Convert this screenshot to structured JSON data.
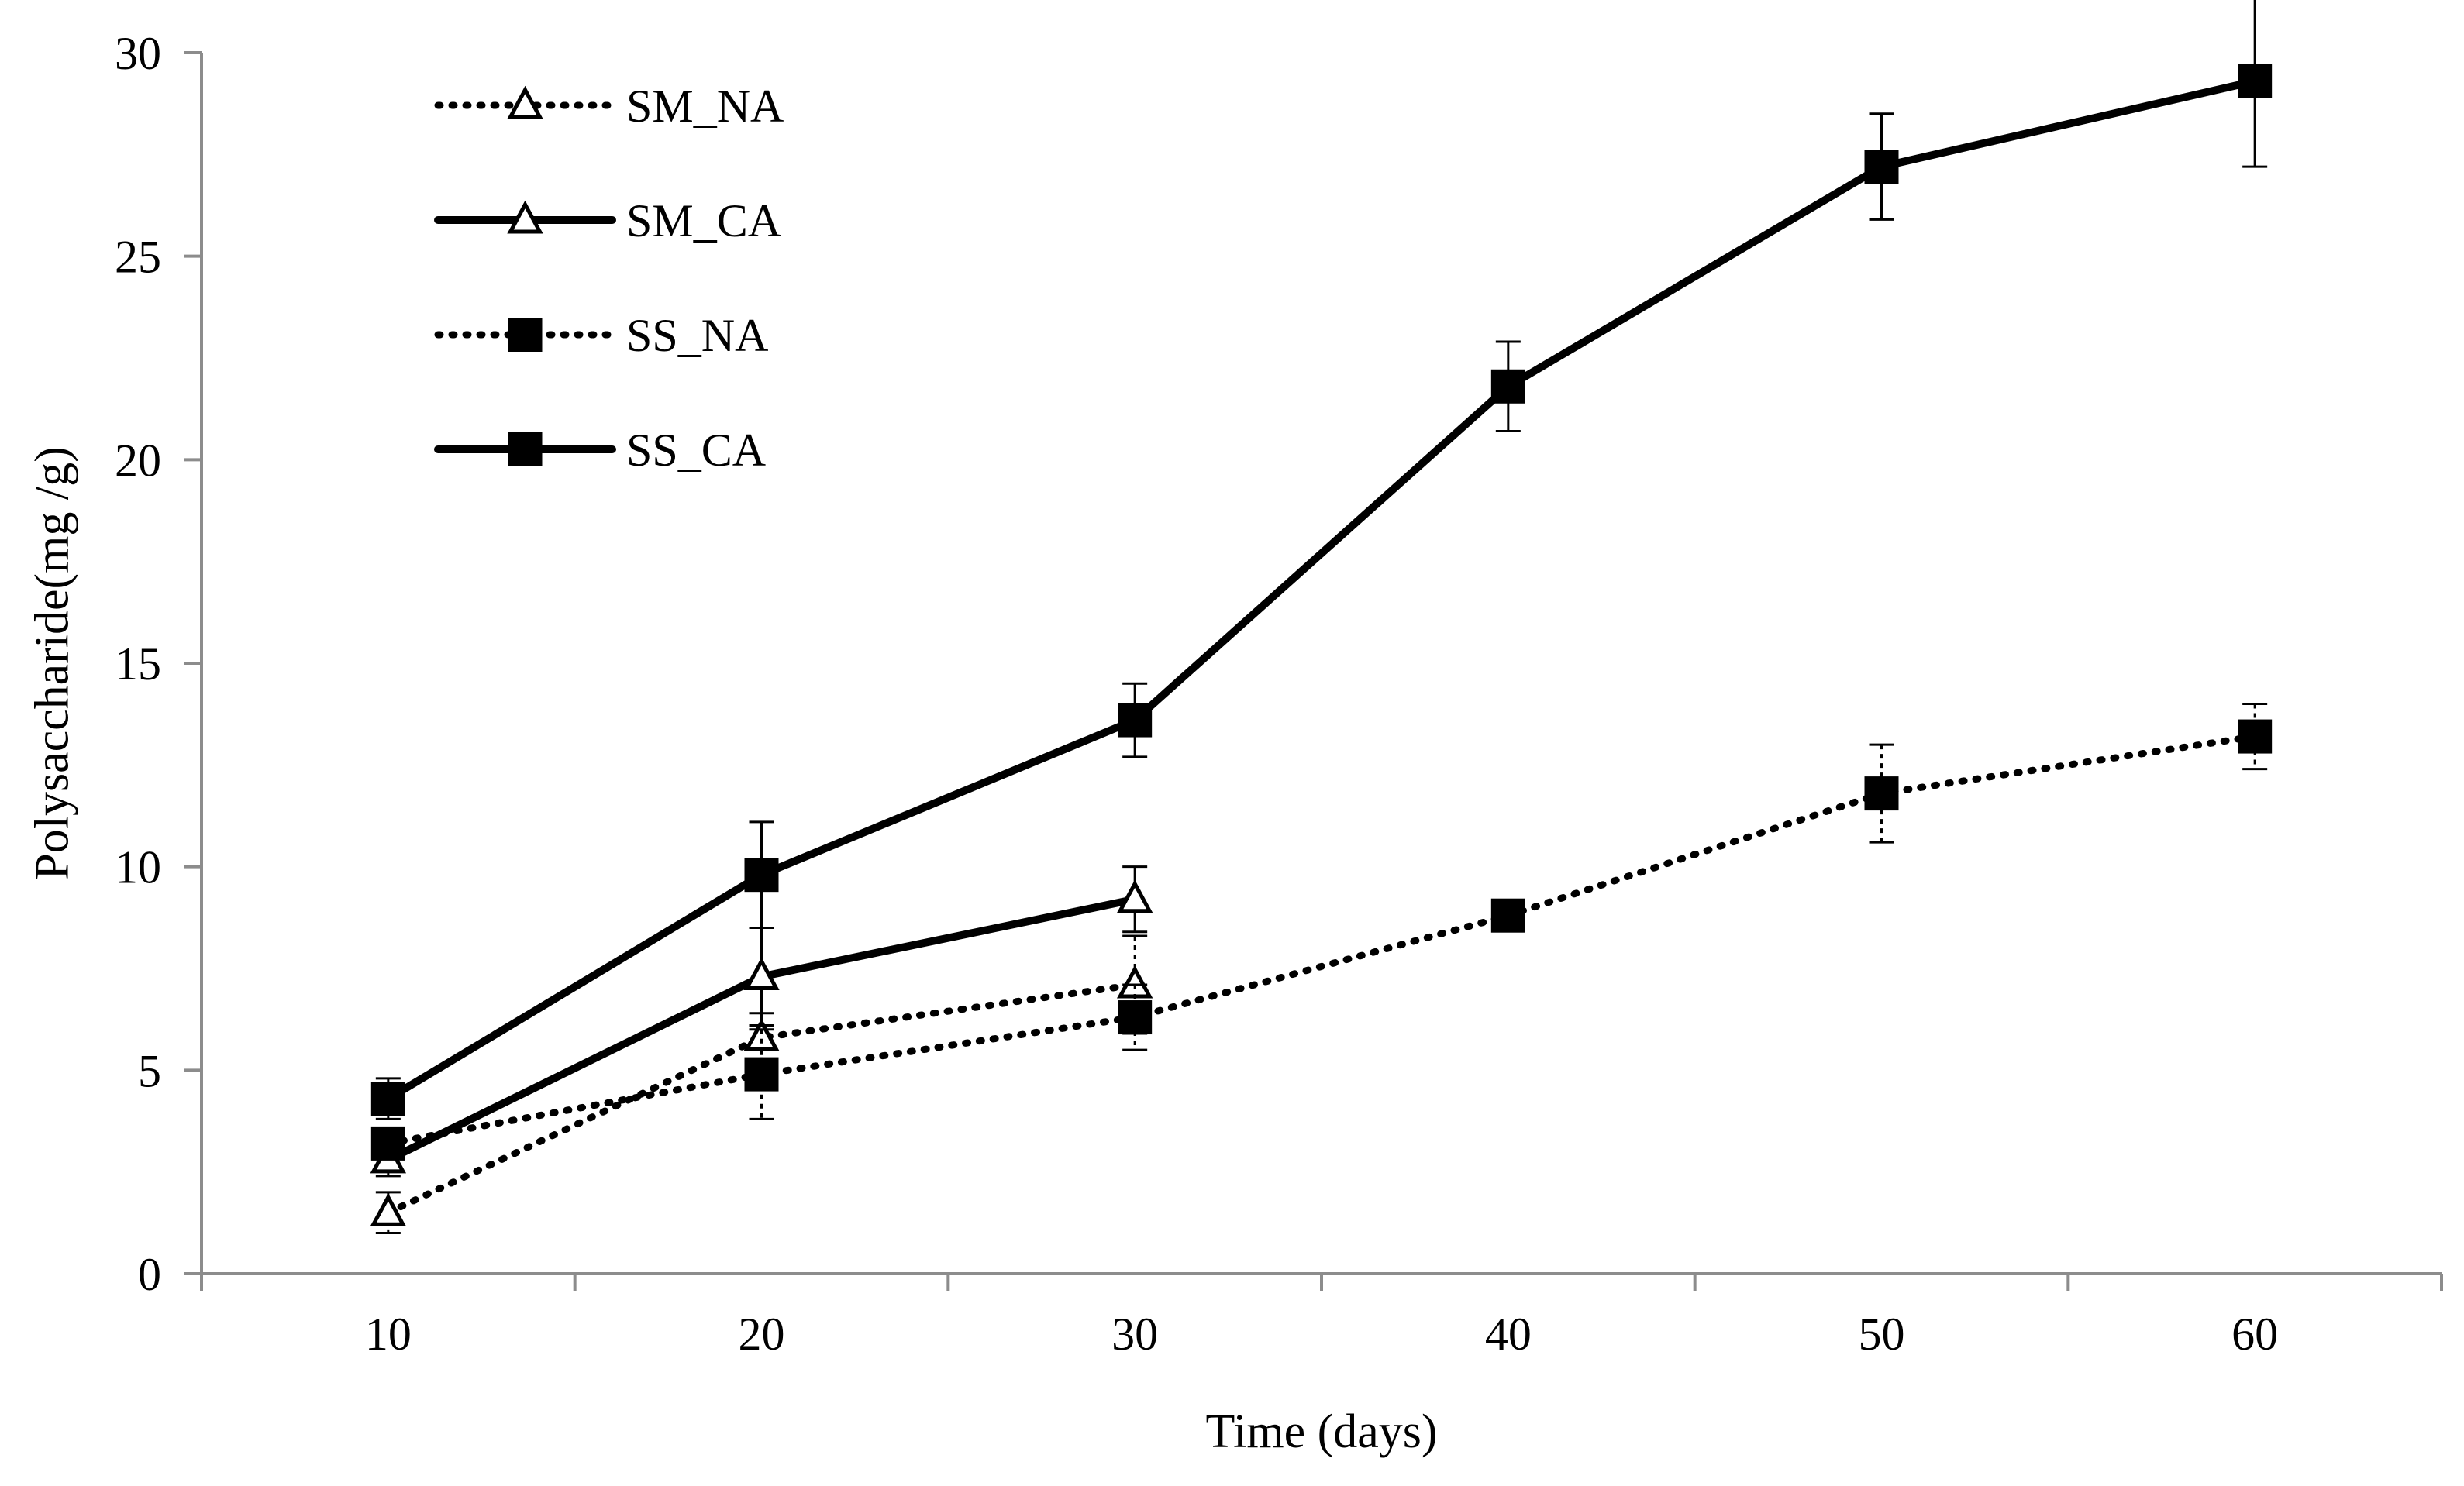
{
  "chart_data": {
    "type": "line",
    "title": "",
    "xlabel": "Time (days)",
    "ylabel": "Polysaccharide(mg /g)",
    "xlim": [
      5,
      65
    ],
    "ylim": [
      0,
      30
    ],
    "xticks": [
      10,
      20,
      30,
      40,
      50,
      60
    ],
    "yticks": [
      0,
      5,
      10,
      15,
      20,
      25,
      30
    ],
    "grid": false,
    "legend_position": "top-left",
    "series": [
      {
        "name": "SM_NA",
        "line": "dotted",
        "marker": "open-triangle",
        "x": [
          10,
          20,
          30
        ],
        "y": [
          1.5,
          5.8,
          7.1
        ],
        "err": [
          0.5,
          0.6,
          1.2
        ]
      },
      {
        "name": "SM_CA",
        "line": "solid",
        "marker": "open-triangle",
        "x": [
          10,
          20,
          30
        ],
        "y": [
          2.8,
          7.3,
          9.2
        ],
        "err": [
          0.4,
          1.2,
          0.8
        ]
      },
      {
        "name": "SS_NA",
        "line": "dotted",
        "marker": "filled-square",
        "x": [
          10,
          20,
          30,
          40,
          50,
          60
        ],
        "y": [
          3.2,
          4.9,
          6.3,
          8.8,
          11.8,
          13.2
        ],
        "err": [
          0.3,
          1.1,
          0.8,
          0.2,
          1.2,
          0.8
        ]
      },
      {
        "name": "SS_CA",
        "line": "solid",
        "marker": "filled-square",
        "x": [
          10,
          20,
          30,
          40,
          50,
          60
        ],
        "y": [
          4.3,
          9.8,
          13.6,
          21.8,
          27.2,
          29.3
        ],
        "err": [
          0.5,
          1.3,
          0.9,
          1.1,
          1.3,
          2.1
        ]
      }
    ]
  }
}
